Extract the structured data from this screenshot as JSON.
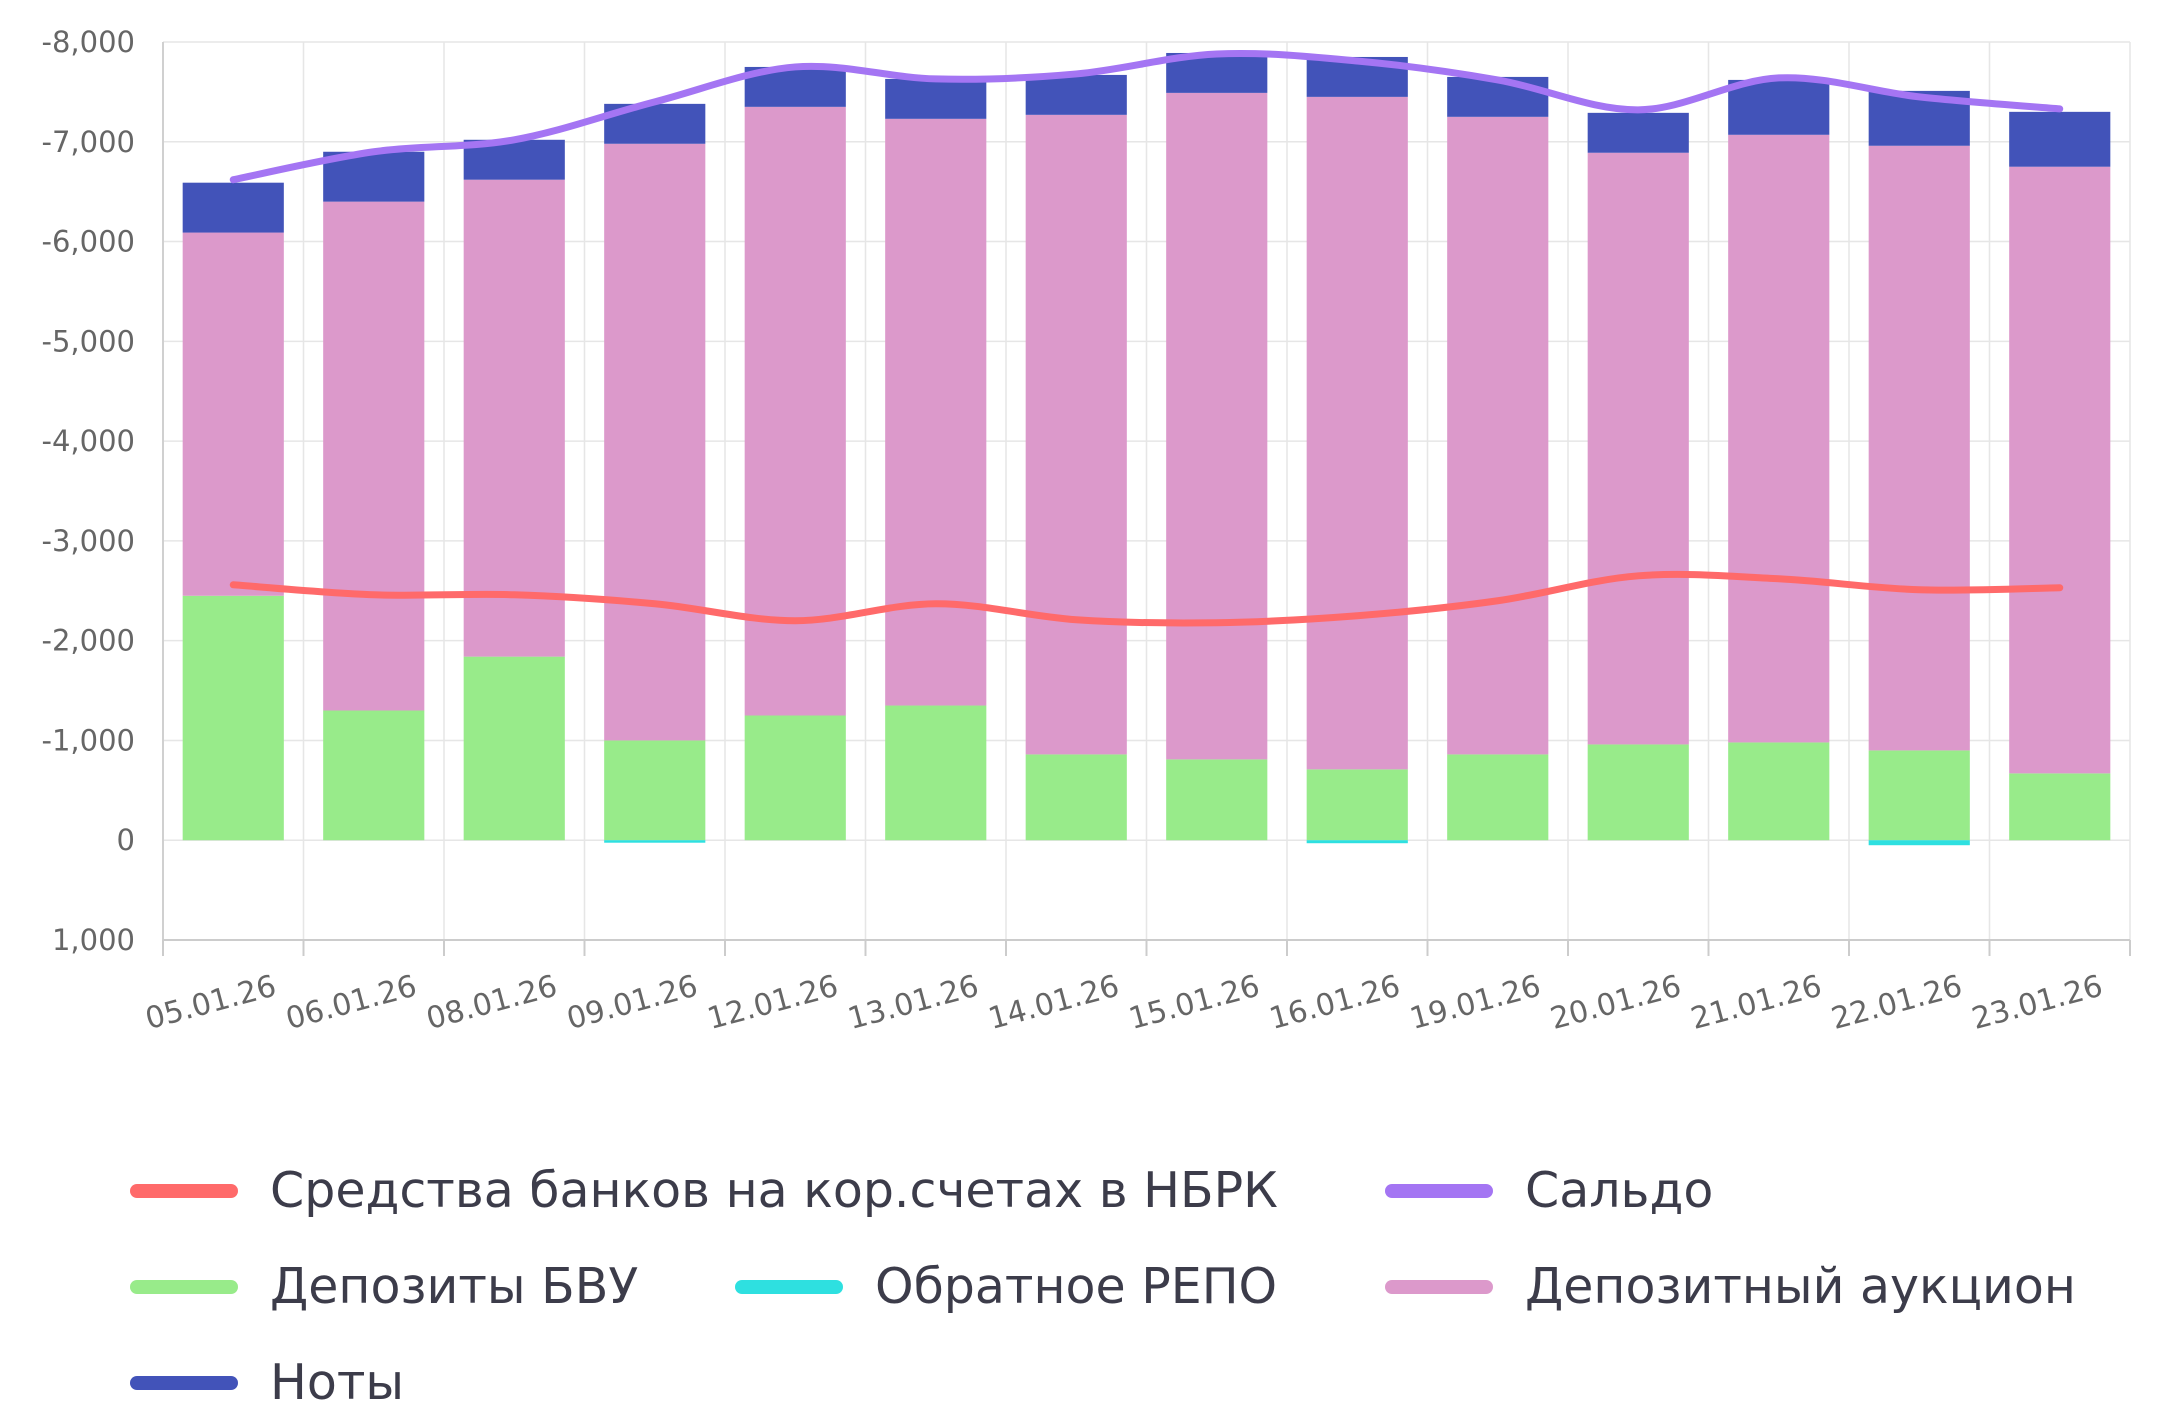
{
  "chart_data": {
    "type": "bar",
    "stacked": true,
    "categories": [
      "05.01.26",
      "06.01.26",
      "08.01.26",
      "09.01.26",
      "12.01.26",
      "13.01.26",
      "14.01.26",
      "15.01.26",
      "16.01.26",
      "19.01.26",
      "20.01.26",
      "21.01.26",
      "22.01.26",
      "23.01.26"
    ],
    "y_axis": {
      "ticks": [
        -8000,
        -7000,
        -6000,
        -5000,
        -4000,
        -3000,
        -2000,
        -1000,
        0,
        1000
      ],
      "tick_labels": [
        "-8,000",
        "-7,000",
        "-6,000",
        "-5,000",
        "-4,000",
        "-3,000",
        "-2,000",
        "-1,000",
        "0",
        "1,000"
      ],
      "ylim": [
        -8000,
        1000
      ],
      "grid": true
    },
    "series": [
      {
        "name": "Депозиты БВУ",
        "type": "bar",
        "color": "#98eb8a",
        "values": [
          -2450,
          -1300,
          -1840,
          -1000,
          -1250,
          -1350,
          -860,
          -810,
          -710,
          -860,
          -960,
          -980,
          -900,
          -670
        ]
      },
      {
        "name": "Обратное РЕПО",
        "type": "bar",
        "color": "#2ee0e0",
        "values": [
          0,
          0,
          0,
          25,
          0,
          0,
          0,
          0,
          30,
          0,
          0,
          0,
          50,
          0
        ]
      },
      {
        "name": "Депозитный аукцион",
        "type": "bar",
        "color": "#dc99cb",
        "values": [
          -3640,
          -5100,
          -4780,
          -5980,
          -6100,
          -5880,
          -6410,
          -6680,
          -6740,
          -6390,
          -5930,
          -6090,
          -6060,
          -6080
        ]
      },
      {
        "name": "Ноты",
        "type": "bar",
        "color": "#4253b9",
        "values": [
          -500,
          -500,
          -400,
          -400,
          -400,
          -400,
          -400,
          -400,
          -400,
          -400,
          -400,
          -550,
          -550,
          -550
        ]
      },
      {
        "name": "Средства банков на кор.счетах в НБРК",
        "type": "line",
        "color": "#ff6a6a",
        "values": [
          -2560,
          -2460,
          -2460,
          -2370,
          -2200,
          -2370,
          -2210,
          -2180,
          -2250,
          -2400,
          -2650,
          -2620,
          -2510,
          -2530
        ]
      },
      {
        "name": "Сальдо",
        "type": "line",
        "color": "#a475f3",
        "values": [
          -6620,
          -6900,
          -7020,
          -7400,
          -7750,
          -7630,
          -7680,
          -7880,
          -7810,
          -7620,
          -7320,
          -7640,
          -7450,
          -7330
        ]
      }
    ],
    "legend_position": "bottom"
  },
  "legend": [
    {
      "label": "Средства банков на кор.счетах в НБРК",
      "color": "#ff6a6a"
    },
    {
      "label": "Сальдо",
      "color": "#a475f3"
    },
    {
      "label": "Депозиты БВУ",
      "color": "#98eb8a"
    },
    {
      "label": "Обратное РЕПО",
      "color": "#2ee0e0"
    },
    {
      "label": "Депозитный аукцион",
      "color": "#dc99cb"
    },
    {
      "label": "Ноты",
      "color": "#4253b9"
    }
  ]
}
